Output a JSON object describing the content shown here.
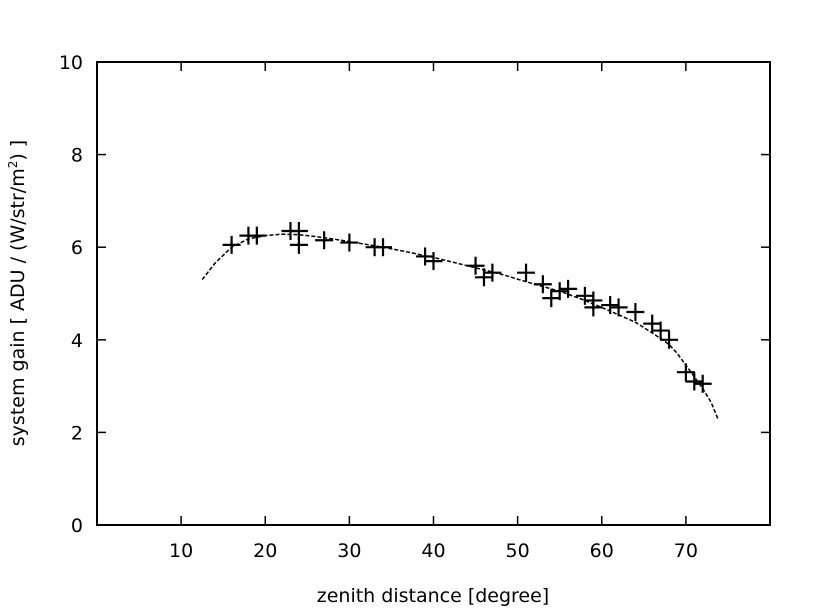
{
  "chart_data": {
    "type": "scatter",
    "xlabel": "zenith distance  [degree]",
    "ylabel": {
      "prefix": "system gain [ ADU / (W/str/m",
      "superscript": "2",
      "suffix": ") ]"
    },
    "xlim": [
      0,
      80
    ],
    "ylim": [
      0,
      10
    ],
    "xticks": [
      10,
      20,
      30,
      40,
      50,
      60,
      70
    ],
    "yticks": [
      0,
      2,
      4,
      6,
      8,
      10
    ],
    "grid": false,
    "legend": "none",
    "series": [
      {
        "marker": "plus",
        "x": [
          16,
          18,
          19,
          23,
          24,
          24,
          27,
          30,
          33,
          34,
          39,
          40,
          45,
          46,
          47,
          51,
          53,
          54,
          55,
          56,
          58,
          59,
          59,
          61,
          62,
          64,
          66,
          67,
          68,
          70,
          71,
          72
        ],
        "y": [
          6.05,
          6.25,
          6.25,
          6.35,
          6.35,
          6.05,
          6.15,
          6.1,
          6.0,
          6.0,
          5.8,
          5.7,
          5.6,
          5.35,
          5.45,
          5.45,
          5.2,
          4.9,
          5.05,
          5.1,
          4.95,
          4.85,
          4.7,
          4.75,
          4.7,
          4.6,
          4.35,
          4.2,
          4.0,
          3.3,
          3.1,
          3.05
        ]
      },
      {
        "line_style": "dashed",
        "x": [
          12.5,
          14,
          16,
          18,
          20,
          22,
          24,
          26,
          28,
          30,
          33,
          36,
          40,
          44,
          48,
          52,
          55,
          58,
          61,
          64,
          66,
          68,
          69,
          70,
          71,
          72,
          73,
          73.8
        ],
        "y": [
          5.3,
          5.65,
          6.0,
          6.18,
          6.25,
          6.28,
          6.27,
          6.23,
          6.18,
          6.12,
          6.03,
          5.93,
          5.78,
          5.6,
          5.42,
          5.2,
          5.05,
          4.85,
          4.62,
          4.38,
          4.15,
          3.9,
          3.7,
          3.45,
          3.2,
          2.95,
          2.65,
          2.3
        ]
      }
    ]
  }
}
